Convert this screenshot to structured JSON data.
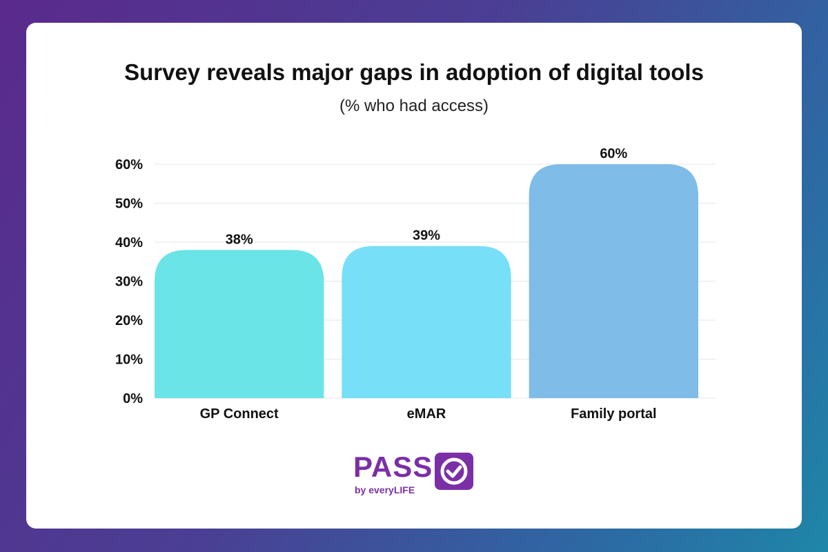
{
  "chart_data": {
    "type": "bar",
    "title": "Survey reveals major gaps in adoption of digital tools",
    "subtitle": "(% who had access)",
    "categories": [
      "GP Connect",
      "eMAR",
      "Family portal"
    ],
    "values": [
      38,
      39,
      60
    ],
    "data_labels": [
      "38%",
      "39%",
      "60%"
    ],
    "colors": [
      "#6ae4e6",
      "#77dff8",
      "#7fbce8"
    ],
    "ylim": [
      0,
      60
    ],
    "yticks": [
      0,
      10,
      20,
      30,
      40,
      50,
      60
    ],
    "ytick_labels": [
      "0%",
      "10%",
      "20%",
      "30%",
      "40%",
      "50%",
      "60%"
    ],
    "grid": true,
    "xlabel": "",
    "ylabel": ""
  },
  "logo": {
    "word": "PASS",
    "tagline": "by everyLIFE",
    "color": "#7b2fa6"
  }
}
